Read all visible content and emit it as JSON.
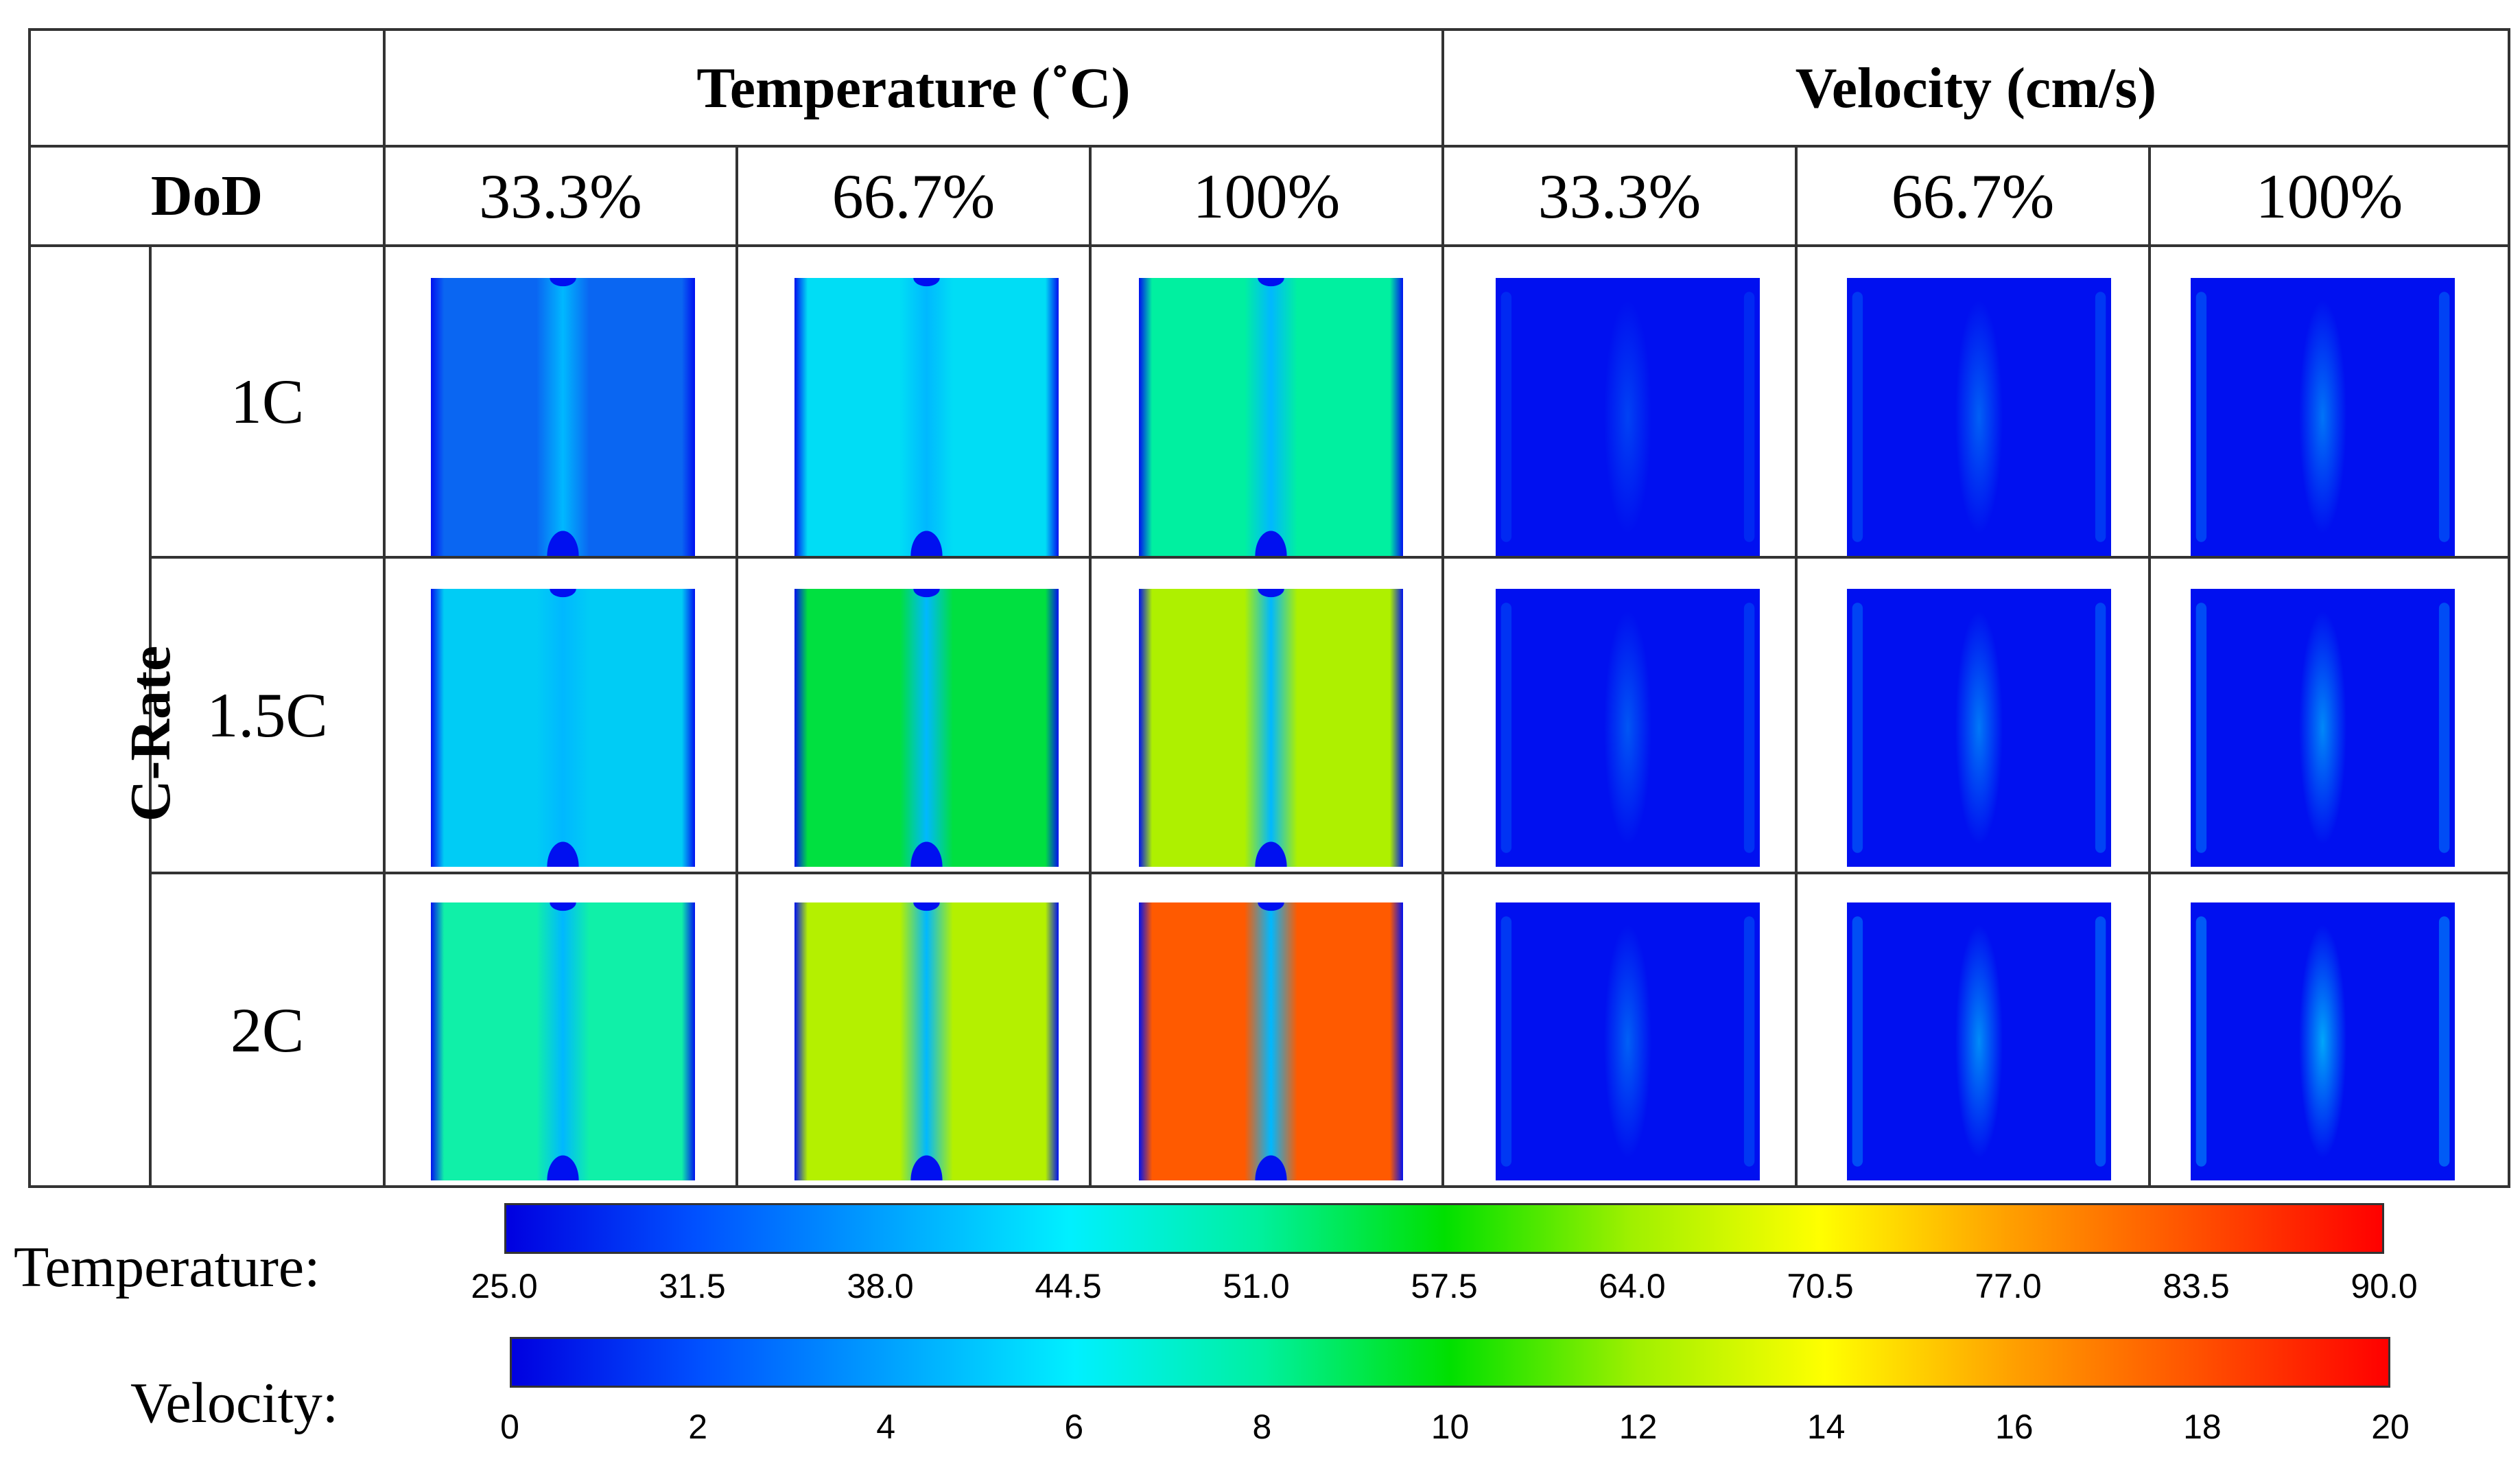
{
  "header": {
    "temperature_title": "Temperature (˚C)",
    "velocity_title": "Velocity (cm/s)",
    "dod_label": "DoD",
    "dod_values": [
      "33.3%",
      "66.7%",
      "100%",
      "33.3%",
      "66.7%",
      "100%"
    ],
    "crate_label": "C-Rate",
    "crate_values": [
      "1C",
      "1.5C",
      "2C"
    ]
  },
  "fields": {
    "temperature": [
      [
        "#0a66f2",
        "#00ddf5",
        "#00f0a0"
      ],
      [
        "#00ccf5",
        "#00e040",
        "#aef000"
      ],
      [
        "#10f0a8",
        "#b4f000",
        "#ff5a00"
      ]
    ],
    "velocity_peak": [
      [
        0.25,
        0.4,
        0.5
      ],
      [
        0.35,
        0.52,
        0.6
      ],
      [
        0.4,
        0.62,
        0.75
      ]
    ],
    "background_color": "#0010f0"
  },
  "legend": {
    "temperature": {
      "label": "Temperature:",
      "ticks": [
        "25.0",
        "31.5",
        "38.0",
        "44.5",
        "51.0",
        "57.5",
        "64.0",
        "70.5",
        "77.0",
        "83.5",
        "90.0"
      ]
    },
    "velocity": {
      "label": "Velocity:",
      "ticks": [
        "0",
        "2",
        "4",
        "6",
        "8",
        "10",
        "12",
        "14",
        "16",
        "18",
        "20"
      ]
    },
    "colormap": [
      "#0000e0",
      "#0050ff",
      "#00a0ff",
      "#00f0ff",
      "#00f0a0",
      "#00e000",
      "#a0f000",
      "#ffff00",
      "#ffa000",
      "#ff5000",
      "#ff0000"
    ]
  }
}
